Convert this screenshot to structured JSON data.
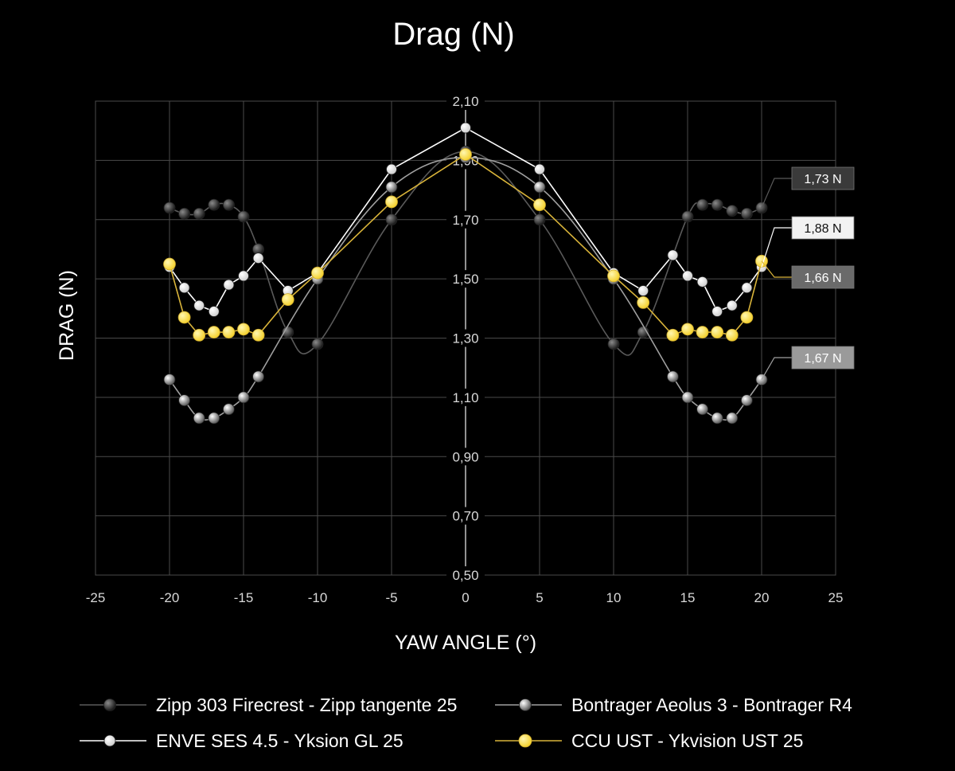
{
  "chart_data": {
    "type": "line",
    "title": "Drag (N)",
    "xlabel": "YAW ANGLE (°)",
    "ylabel": "DRAG (N)",
    "xlim": [
      -25,
      25
    ],
    "ylim": [
      0.5,
      2.1
    ],
    "xticks": [
      -25,
      -20,
      -15,
      -10,
      -5,
      0,
      5,
      10,
      15,
      20,
      25
    ],
    "yticks": [
      0.5,
      0.7,
      0.9,
      1.1,
      1.3,
      1.5,
      1.7,
      1.9,
      2.1
    ],
    "xtick_labels": [
      "-25",
      "-20",
      "-15",
      "-10",
      "-5",
      "0",
      "5",
      "10",
      "15",
      "20",
      "25"
    ],
    "ytick_labels": [
      "0,50",
      "0,70",
      "0,90",
      "1,10",
      "1,30",
      "1,50",
      "1,70",
      "1,90",
      "2,10"
    ],
    "grid": true,
    "legend_position": "bottom",
    "series": [
      {
        "name": "Zipp 303 Firecrest - Zipp tangente 25",
        "color": "#3a3a3a",
        "line_color": "#5a5a5a",
        "end_label": "1,73 N",
        "end_label_bg": "#3a3a3a",
        "end_label_color": "#ffffff",
        "x": [
          -20,
          -19,
          -18,
          -17,
          -16,
          -15,
          -14,
          -12,
          -10,
          -5,
          0,
          5,
          10,
          12,
          15,
          16,
          17,
          18,
          19,
          20
        ],
        "y": [
          1.74,
          1.72,
          1.72,
          1.75,
          1.75,
          1.71,
          1.6,
          1.32,
          1.28,
          1.7,
          1.93,
          1.7,
          1.28,
          1.32,
          1.71,
          1.75,
          1.75,
          1.73,
          1.72,
          1.74
        ]
      },
      {
        "name": "Bontrager Aeolus 3 - Bontrager R4",
        "color": "#9a9a9a",
        "line_color": "#a0a0a0",
        "end_label": "1,67 N",
        "end_label_bg": "#9a9a9a",
        "end_label_color": "#ffffff",
        "x": [
          -20,
          -19,
          -18,
          -17,
          -16,
          -15,
          -14,
          -10,
          -5,
          0,
          5,
          10,
          14,
          15,
          16,
          17,
          18,
          19,
          20
        ],
        "y": [
          1.16,
          1.09,
          1.03,
          1.03,
          1.06,
          1.1,
          1.17,
          1.5,
          1.81,
          1.91,
          1.81,
          1.5,
          1.17,
          1.1,
          1.06,
          1.03,
          1.03,
          1.09,
          1.16
        ]
      },
      {
        "name": "ENVE SES 4.5 - Yksion GL 25",
        "color": "#e6e6e6",
        "line_color": "#ffffff",
        "end_label": "1,88 N",
        "end_label_bg": "#f2f2f2",
        "end_label_color": "#111111",
        "x": [
          -20,
          -19,
          -18,
          -17,
          -16,
          -15,
          -14,
          -12,
          -10,
          -5,
          0,
          5,
          10,
          12,
          14,
          15,
          16,
          17,
          18,
          19,
          20
        ],
        "y": [
          1.54,
          1.47,
          1.41,
          1.39,
          1.48,
          1.51,
          1.57,
          1.46,
          1.52,
          1.87,
          2.01,
          1.87,
          1.52,
          1.46,
          1.58,
          1.51,
          1.49,
          1.39,
          1.41,
          1.47,
          1.54
        ]
      },
      {
        "name": "CCU UST - Ykvision UST 25",
        "color": "#ffe45c",
        "line_color": "#d9b43a",
        "end_label": "1,66 N",
        "end_label_bg": "#6a6a6a",
        "end_label_color": "#ffffff",
        "x": [
          -20,
          -19,
          -18,
          -17,
          -16,
          -15,
          -14,
          -12,
          -10,
          -5,
          0,
          5,
          10,
          12,
          14,
          15,
          16,
          17,
          18,
          19,
          20
        ],
        "y": [
          1.55,
          1.37,
          1.31,
          1.32,
          1.32,
          1.33,
          1.31,
          1.43,
          1.52,
          1.76,
          1.92,
          1.75,
          1.51,
          1.42,
          1.31,
          1.33,
          1.32,
          1.32,
          1.31,
          1.37,
          1.56
        ]
      }
    ]
  }
}
